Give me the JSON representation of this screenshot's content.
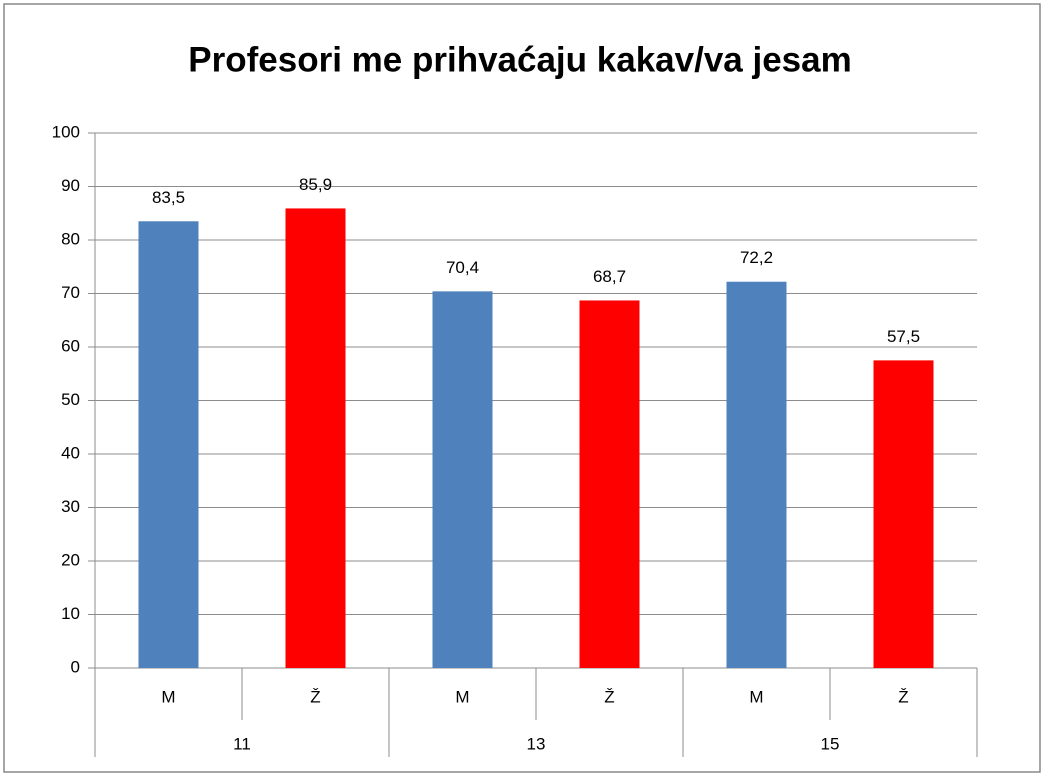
{
  "chart_data": {
    "type": "bar",
    "title": "Profesori me prihvaćaju kakav/va jesam",
    "categories": [
      "M",
      "Ž",
      "M",
      "Ž",
      "M",
      "Ž"
    ],
    "groups": [
      "11",
      "13",
      "15"
    ],
    "values": [
      83.5,
      85.9,
      70.4,
      68.7,
      72.2,
      57.5
    ],
    "value_labels": [
      "83,5",
      "85,9",
      "70,4",
      "68,7",
      "72,2",
      "57,5"
    ],
    "colors": [
      "#4f81bd",
      "#ff0000",
      "#4f81bd",
      "#ff0000",
      "#4f81bd",
      "#ff0000"
    ],
    "ylim": [
      0,
      100
    ],
    "yticks": [
      0,
      10,
      20,
      30,
      40,
      50,
      60,
      70,
      80,
      90,
      100
    ],
    "grid": true
  }
}
